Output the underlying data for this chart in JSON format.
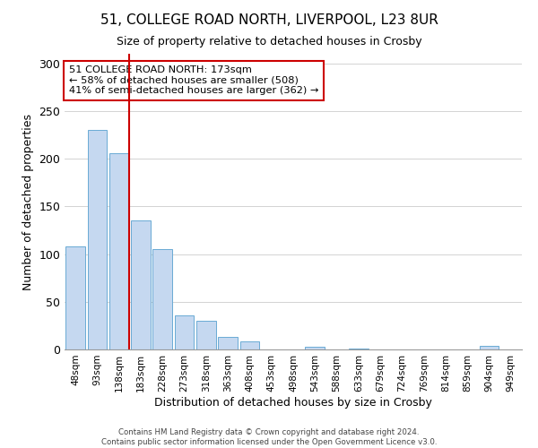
{
  "title": "51, COLLEGE ROAD NORTH, LIVERPOOL, L23 8UR",
  "subtitle": "Size of property relative to detached houses in Crosby",
  "xlabel": "Distribution of detached houses by size in Crosby",
  "ylabel": "Number of detached properties",
  "bar_labels": [
    "48sqm",
    "93sqm",
    "138sqm",
    "183sqm",
    "228sqm",
    "273sqm",
    "318sqm",
    "363sqm",
    "408sqm",
    "453sqm",
    "498sqm",
    "543sqm",
    "588sqm",
    "633sqm",
    "679sqm",
    "724sqm",
    "769sqm",
    "814sqm",
    "859sqm",
    "904sqm",
    "949sqm"
  ],
  "bar_values": [
    108,
    230,
    206,
    135,
    105,
    36,
    30,
    13,
    8,
    0,
    0,
    3,
    0,
    1,
    0,
    0,
    0,
    0,
    0,
    4,
    0
  ],
  "bar_color": "#c5d8f0",
  "bar_edge_color": "#6aaad4",
  "vline_color": "#cc0000",
  "annotation_text": "51 COLLEGE ROAD NORTH: 173sqm\n← 58% of detached houses are smaller (508)\n41% of semi-detached houses are larger (362) →",
  "annotation_box_color": "#ffffff",
  "annotation_box_edge": "#cc0000",
  "ylim": [
    0,
    310
  ],
  "yticks": [
    0,
    50,
    100,
    150,
    200,
    250,
    300
  ],
  "footer_line1": "Contains HM Land Registry data © Crown copyright and database right 2024.",
  "footer_line2": "Contains public sector information licensed under the Open Government Licence v3.0.",
  "bg_color": "#ffffff",
  "grid_color": "#cccccc"
}
